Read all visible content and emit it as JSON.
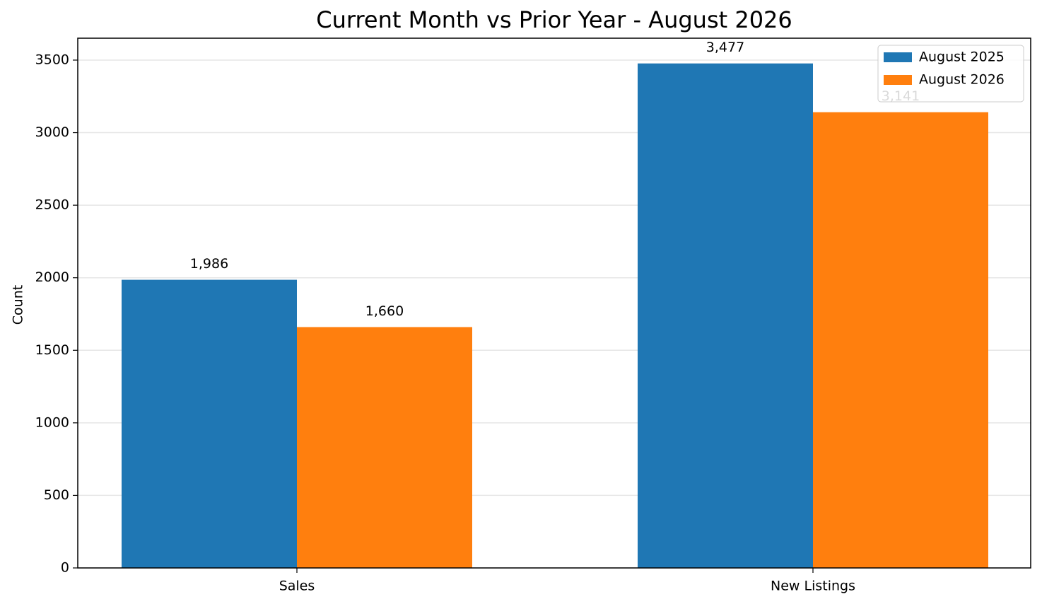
{
  "chart_data": {
    "type": "bar",
    "title": "Current Month vs Prior Year - August 2026",
    "y_label": "Count",
    "categories": [
      "Sales",
      "New Listings"
    ],
    "series": [
      {
        "name": "August 2025",
        "color": "#1f77b4",
        "values": [
          1986,
          3477
        ],
        "value_labels": [
          "1,986",
          "3,477"
        ]
      },
      {
        "name": "August 2026",
        "color": "#ff7f0e",
        "values": [
          1660,
          3141
        ],
        "value_labels": [
          "1,660",
          "3,141"
        ]
      }
    ],
    "ylim": [
      0,
      3651
    ],
    "yticks": [
      0,
      500,
      1000,
      1500,
      2000,
      2500,
      3000,
      3500
    ],
    "grid": true,
    "legend": "upper right"
  }
}
